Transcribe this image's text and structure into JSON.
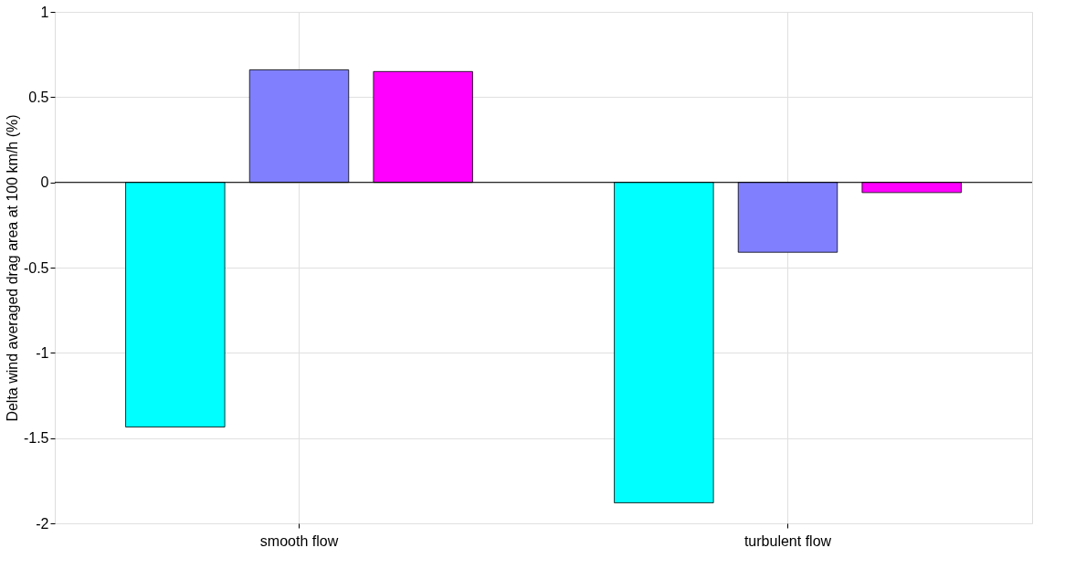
{
  "chart_data": {
    "type": "bar",
    "ylabel": "Delta wind averaged drag area at 100 km/h (%)",
    "categories": [
      "smooth flow",
      "turbulent flow"
    ],
    "series": [
      {
        "color": "#00ffff",
        "values": [
          -1.435,
          -1.88
        ]
      },
      {
        "color": "#8080ff",
        "values": [
          0.66,
          -0.41
        ]
      },
      {
        "color": "#ff00ff",
        "values": [
          0.65,
          -0.06
        ]
      }
    ],
    "ylim": [
      -2,
      1
    ],
    "yticks": [
      -2,
      -1.5,
      -1,
      -0.5,
      0,
      0.5,
      1
    ],
    "grid": true,
    "legend": false
  }
}
